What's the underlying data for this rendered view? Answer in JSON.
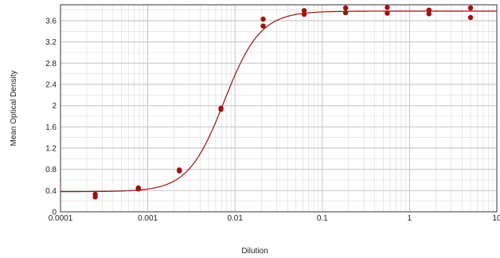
{
  "chart_data": {
    "type": "scatter",
    "title": "",
    "xlabel": "Dilution",
    "ylabel": "Mean Optical Density",
    "x_scale": "log",
    "xlim": [
      0.0001,
      10
    ],
    "ylim": [
      0,
      3.9
    ],
    "grid": true,
    "x_ticks": [
      {
        "value": 0.0001,
        "label": "0.0001"
      },
      {
        "value": 0.001,
        "label": "0.001"
      },
      {
        "value": 0.01,
        "label": "0.01"
      },
      {
        "value": 0.1,
        "label": "0.1"
      },
      {
        "value": 1,
        "label": "1"
      },
      {
        "value": 10,
        "label": "10"
      }
    ],
    "y_ticks": [
      {
        "value": 0,
        "label": "0"
      },
      {
        "value": 0.4,
        "label": "0.4"
      },
      {
        "value": 0.8,
        "label": "0.8"
      },
      {
        "value": 1.2,
        "label": "1.2"
      },
      {
        "value": 1.6,
        "label": "1.6"
      },
      {
        "value": 2,
        "label": "2"
      },
      {
        "value": 2.4,
        "label": "2.4"
      },
      {
        "value": 2.8,
        "label": "2.8"
      },
      {
        "value": 3.2,
        "label": "3.2"
      },
      {
        "value": 3.6,
        "label": "3.6"
      }
    ],
    "points": [
      {
        "x": 0.00025,
        "y": 0.33
      },
      {
        "x": 0.00025,
        "y": 0.28
      },
      {
        "x": 0.00078,
        "y": 0.45
      },
      {
        "x": 0.00078,
        "y": 0.43
      },
      {
        "x": 0.0023,
        "y": 0.79
      },
      {
        "x": 0.0023,
        "y": 0.77
      },
      {
        "x": 0.0069,
        "y": 1.95
      },
      {
        "x": 0.0069,
        "y": 1.93
      },
      {
        "x": 0.021,
        "y": 3.63
      },
      {
        "x": 0.021,
        "y": 3.5
      },
      {
        "x": 0.062,
        "y": 3.79
      },
      {
        "x": 0.062,
        "y": 3.72
      },
      {
        "x": 0.185,
        "y": 3.84
      },
      {
        "x": 0.185,
        "y": 3.75
      },
      {
        "x": 0.555,
        "y": 3.85
      },
      {
        "x": 0.555,
        "y": 3.74
      },
      {
        "x": 1.67,
        "y": 3.8
      },
      {
        "x": 1.67,
        "y": 3.73
      },
      {
        "x": 5.0,
        "y": 3.84
      },
      {
        "x": 5.0,
        "y": 3.66
      }
    ],
    "fit_curve": {
      "type": "4PL",
      "bottom": 0.38,
      "top": 3.78,
      "ec50": 0.0075,
      "hill": 2.1
    },
    "colors": {
      "points": "#a01010",
      "curve": "#a01010",
      "major_grid": "#bdbdbd",
      "minor_grid": "#d9d9d9",
      "axis": "#333333"
    }
  }
}
